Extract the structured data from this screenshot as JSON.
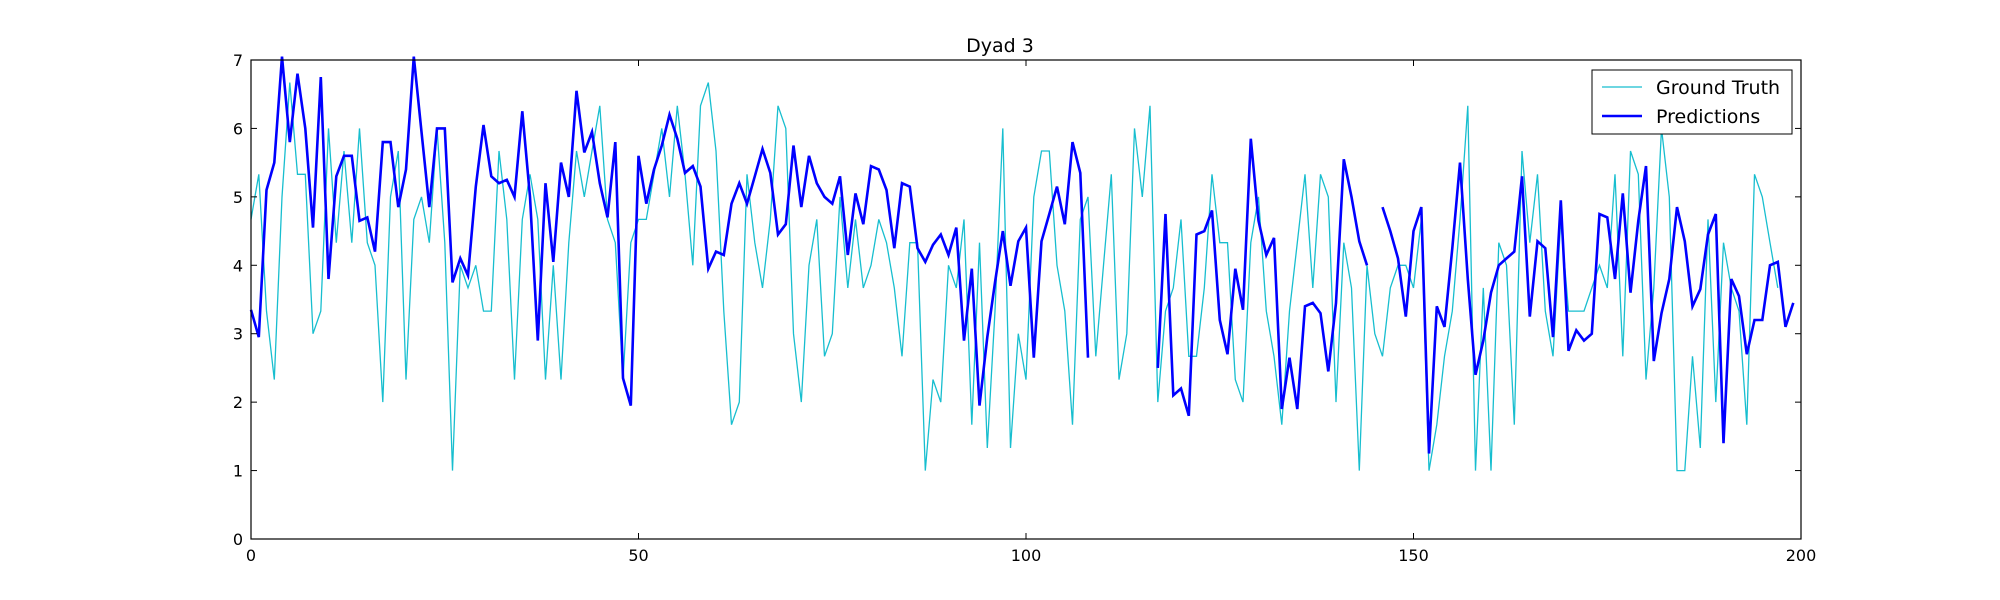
{
  "chart_data": {
    "type": "line",
    "title": "Dyad 3",
    "xlabel": "",
    "ylabel": "",
    "xlim": [
      0,
      200
    ],
    "ylim": [
      0,
      7
    ],
    "xticks": [
      "0",
      "50",
      "100",
      "150",
      "200"
    ],
    "yticks": [
      "0",
      "1",
      "2",
      "3",
      "4",
      "5",
      "6",
      "7"
    ],
    "grid": false,
    "legend_position": "top-right",
    "series": [
      {
        "name": "Ground Truth",
        "color": "#17becf",
        "values": [
          4.67,
          5.33,
          3.33,
          2.33,
          5.0,
          6.67,
          5.33,
          5.33,
          3.0,
          3.33,
          6.0,
          4.33,
          5.67,
          4.33,
          6.0,
          4.33,
          4.0,
          2.0,
          5.0,
          5.67,
          2.33,
          4.67,
          5.0,
          4.33,
          6.0,
          4.33,
          1.0,
          4.0,
          3.67,
          4.0,
          3.33,
          3.33,
          5.67,
          4.67,
          2.33,
          4.67,
          5.33,
          4.67,
          2.33,
          4.0,
          2.33,
          4.33,
          5.67,
          5.0,
          5.67,
          6.33,
          4.67,
          4.33,
          2.33,
          4.33,
          4.67,
          4.67,
          5.33,
          6.0,
          5.0,
          6.33,
          5.33,
          4.0,
          6.33,
          6.67,
          5.67,
          3.33,
          1.67,
          2.0,
          5.33,
          4.33,
          3.67,
          4.67,
          6.33,
          6.0,
          3.0,
          2.0,
          4.0,
          4.67,
          2.67,
          3.0,
          5.0,
          3.67,
          4.67,
          3.67,
          4.0,
          4.67,
          4.33,
          3.67,
          2.67,
          4.33,
          4.33,
          1.0,
          2.33,
          2.0,
          4.0,
          3.67,
          4.67,
          1.67,
          4.33,
          1.33,
          3.33,
          6.0,
          1.33,
          3.0,
          2.33,
          5.0,
          5.67,
          5.67,
          4.0,
          3.33,
          1.67,
          4.67,
          5.0,
          2.67,
          4.0,
          5.33,
          2.33,
          3.0,
          6.0,
          5.0,
          6.33,
          2.0,
          3.33,
          3.67,
          4.67,
          2.67,
          2.67,
          3.67,
          5.33,
          4.33,
          4.33,
          2.33,
          2.0,
          4.33,
          5.0,
          3.33,
          2.67,
          1.67,
          3.33,
          4.33,
          5.33,
          3.67,
          5.33,
          5.0,
          2.0,
          4.33,
          3.67,
          1.0,
          4.0,
          3.0,
          2.67,
          3.67,
          4.0,
          4.0,
          3.67,
          4.67,
          1.0,
          1.67,
          2.67,
          3.33,
          4.67,
          6.33,
          1.0,
          3.67,
          1.0,
          4.33,
          4.0,
          1.67,
          5.67,
          4.33,
          5.33,
          3.33,
          2.67,
          4.67,
          3.33,
          3.33,
          3.33,
          3.67,
          4.0,
          3.67,
          5.33,
          2.67,
          5.67,
          5.33,
          2.33,
          3.67,
          6.0,
          5.0,
          1.0,
          1.0,
          2.67,
          1.33,
          4.67,
          2.0,
          4.33,
          3.67,
          3.33,
          1.67,
          5.33,
          5.0,
          4.33,
          3.67
        ]
      },
      {
        "name": "Predictions",
        "color": "#0000ff",
        "values": [
          3.35,
          2.95,
          5.1,
          5.5,
          7.05,
          5.8,
          6.8,
          6.0,
          4.55,
          6.75,
          3.8,
          5.3,
          5.6,
          5.6,
          4.65,
          4.7,
          4.2,
          5.8,
          5.8,
          4.85,
          5.4,
          7.05,
          5.95,
          4.85,
          6.0,
          6.0,
          3.75,
          4.1,
          3.85,
          5.15,
          6.05,
          5.3,
          5.2,
          5.25,
          5.0,
          6.25,
          5.0,
          2.9,
          5.2,
          4.05,
          5.5,
          5.0,
          6.55,
          5.65,
          5.95,
          5.2,
          4.7,
          5.8,
          2.35,
          1.95,
          5.6,
          4.9,
          5.4,
          5.75,
          6.2,
          5.85,
          5.35,
          5.45,
          5.15,
          3.95,
          4.2,
          4.15,
          4.9,
          5.2,
          4.9,
          5.3,
          5.7,
          5.35,
          4.45,
          4.6,
          5.75,
          4.85,
          5.6,
          5.2,
          5.0,
          4.9,
          5.3,
          4.15,
          5.05,
          4.6,
          5.45,
          5.4,
          5.1,
          4.25,
          5.2,
          5.15,
          4.25,
          4.05,
          4.3,
          4.45,
          4.15,
          4.55,
          2.9,
          3.95,
          1.95,
          2.95,
          3.75,
          4.5,
          3.7,
          4.35,
          4.55,
          2.65,
          4.35,
          4.75,
          5.15,
          4.6,
          5.8,
          5.35,
          2.65,
          null,
          null,
          null,
          null,
          null,
          null,
          null,
          null,
          2.5,
          4.75,
          2.1,
          2.2,
          1.8,
          4.45,
          4.5,
          4.8,
          3.2,
          2.7,
          3.95,
          3.35,
          5.85,
          4.65,
          4.15,
          4.4,
          1.9,
          2.65,
          1.9,
          3.4,
          3.45,
          3.3,
          2.45,
          3.45,
          5.55,
          5.0,
          4.35,
          4.0,
          null,
          4.85,
          4.5,
          4.1,
          3.25,
          4.5,
          4.85,
          1.25,
          3.4,
          3.1,
          4.25,
          5.5,
          3.8,
          2.4,
          2.9,
          3.6,
          4.0,
          4.1,
          4.2,
          5.3,
          3.25,
          4.35,
          4.25,
          2.95,
          4.95,
          2.75,
          3.05,
          2.9,
          3.0,
          4.75,
          4.7,
          3.8,
          5.05,
          3.6,
          4.65,
          5.45,
          2.6,
          3.3,
          3.8,
          4.85,
          4.35,
          3.4,
          3.65,
          4.45,
          4.75,
          1.4,
          3.8,
          3.55,
          2.7,
          3.2,
          3.2,
          4.0,
          4.05,
          3.1,
          3.45
        ]
      }
    ]
  }
}
